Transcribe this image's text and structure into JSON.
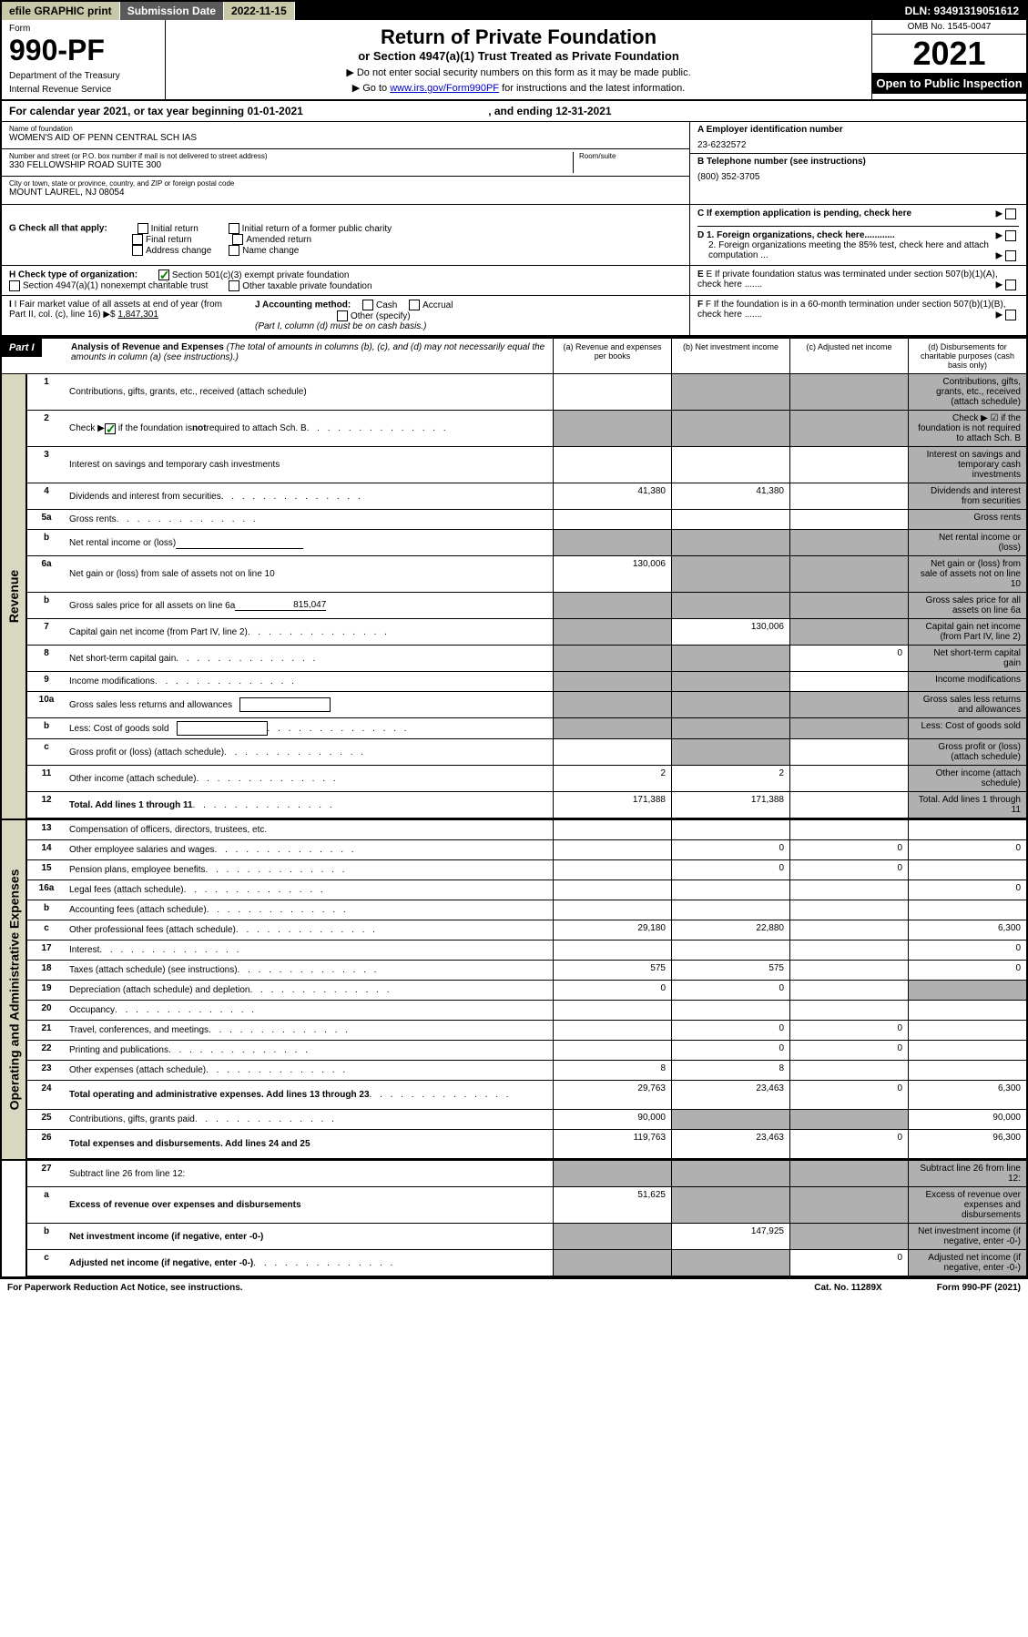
{
  "top_bar": {
    "efile": "efile GRAPHIC print",
    "sub_label": "Submission Date",
    "sub_value": "2022-11-15",
    "dln": "DLN: 93491319051612"
  },
  "header": {
    "form_label": "Form",
    "form_num": "990-PF",
    "dept": "Department of the Treasury",
    "irs": "Internal Revenue Service",
    "title": "Return of Private Foundation",
    "subtitle": "or Section 4947(a)(1) Trust Treated as Private Foundation",
    "instr1": "▶ Do not enter social security numbers on this form as it may be made public.",
    "instr2_pre": "▶ Go to ",
    "instr2_link": "www.irs.gov/Form990PF",
    "instr2_post": " for instructions and the latest information.",
    "omb": "OMB No. 1545-0047",
    "year": "2021",
    "open": "Open to Public Inspection"
  },
  "cal_year": {
    "pre": "For calendar year 2021, or tax year beginning ",
    "begin": "01-01-2021",
    "mid": " , and ending ",
    "end": "12-31-2021"
  },
  "name_block": {
    "label": "Name of foundation",
    "value": "WOMEN'S AID OF PENN CENTRAL SCH IAS"
  },
  "address_block": {
    "label": "Number and street (or P.O. box number if mail is not delivered to street address)",
    "value": "330 FELLOWSHIP ROAD SUITE 300",
    "room_label": "Room/suite"
  },
  "city_block": {
    "label": "City or town, state or province, country, and ZIP or foreign postal code",
    "value": "MOUNT LAUREL, NJ  08054"
  },
  "ein": {
    "label": "A Employer identification number",
    "value": "23-6232572"
  },
  "phone": {
    "label": "B Telephone number (see instructions)",
    "value": "(800) 352-3705"
  },
  "c_line": "C If exemption application is pending, check here",
  "g_check": {
    "label": "G Check all that apply:",
    "initial": "Initial return",
    "initial_former": "Initial return of a former public charity",
    "final": "Final return",
    "amended": "Amended return",
    "address": "Address change",
    "name": "Name change"
  },
  "d_block": {
    "d1": "D 1. Foreign organizations, check here............",
    "d2": "2. Foreign organizations meeting the 85% test, check here and attach computation ..."
  },
  "h_check": {
    "label": "H Check type of organization:",
    "opt1": "Section 501(c)(3) exempt private foundation",
    "opt2": "Section 4947(a)(1) nonexempt charitable trust",
    "opt3": "Other taxable private foundation"
  },
  "e_line": "E If private foundation status was terminated under section 507(b)(1)(A), check here .......",
  "i_block": {
    "label": "I Fair market value of all assets at end of year (from Part II, col. (c), line 16) ▶$",
    "value": "1,847,301"
  },
  "j_block": {
    "label": "J Accounting method:",
    "cash": "Cash",
    "accrual": "Accrual",
    "other": "Other (specify)",
    "note": "(Part I, column (d) must be on cash basis.)"
  },
  "f_line": "F If the foundation is in a 60-month termination under section 507(b)(1)(B), check here .......",
  "part1": {
    "label": "Part I",
    "title": "Analysis of Revenue and Expenses",
    "note": "(The total of amounts in columns (b), (c), and (d) may not necessarily equal the amounts in column (a) (see instructions).)",
    "col_a": "(a) Revenue and expenses per books",
    "col_b": "(b) Net investment income",
    "col_c": "(c) Adjusted net income",
    "col_d": "(d) Disbursements for charitable purposes (cash basis only)"
  },
  "side_labels": {
    "revenue": "Revenue",
    "expenses": "Operating and Administrative Expenses"
  },
  "rows": [
    {
      "n": "1",
      "d": "Contributions, gifts, grants, etc., received (attach schedule)",
      "a": "",
      "b_s": true,
      "c_s": true,
      "d_s": true
    },
    {
      "n": "2",
      "d": "Check ▶ ☑ if the foundation is not required to attach Sch. B",
      "checkmark": true,
      "a_s": true,
      "b_s": true,
      "c_s": true,
      "d_s": true,
      "dots": true
    },
    {
      "n": "3",
      "d": "Interest on savings and temporary cash investments",
      "d_s": true
    },
    {
      "n": "4",
      "d": "Dividends and interest from securities",
      "a": "41,380",
      "b": "41,380",
      "d_s": true,
      "dots": true
    },
    {
      "n": "5a",
      "d": "Gross rents",
      "d_s": true,
      "dots": true
    },
    {
      "n": "b",
      "d": "Net rental income or (loss)",
      "inline": true,
      "a_s": true,
      "b_s": true,
      "c_s": true,
      "d_s": true
    },
    {
      "n": "6a",
      "d": "Net gain or (loss) from sale of assets not on line 10",
      "a": "130,006",
      "b_s": true,
      "c_s": true,
      "d_s": true
    },
    {
      "n": "b",
      "d": "Gross sales price for all assets on line 6a",
      "inline_val": "815,047",
      "a_s": true,
      "b_s": true,
      "c_s": true,
      "d_s": true
    },
    {
      "n": "7",
      "d": "Capital gain net income (from Part IV, line 2)",
      "a_s": true,
      "b": "130,006",
      "c_s": true,
      "d_s": true,
      "dots": true
    },
    {
      "n": "8",
      "d": "Net short-term capital gain",
      "a_s": true,
      "b_s": true,
      "c": "0",
      "d_s": true,
      "dots": true
    },
    {
      "n": "9",
      "d": "Income modifications",
      "a_s": true,
      "b_s": true,
      "d_s": true,
      "dots": true
    },
    {
      "n": "10a",
      "d": "Gross sales less returns and allowances",
      "box": true,
      "a_s": true,
      "b_s": true,
      "c_s": true,
      "d_s": true
    },
    {
      "n": "b",
      "d": "Less: Cost of goods sold",
      "box": true,
      "a_s": true,
      "b_s": true,
      "c_s": true,
      "d_s": true,
      "dots": true
    },
    {
      "n": "c",
      "d": "Gross profit or (loss) (attach schedule)",
      "b_s": true,
      "d_s": true,
      "dots": true
    },
    {
      "n": "11",
      "d": "Other income (attach schedule)",
      "a": "2",
      "b": "2",
      "d_s": true,
      "dots": true
    },
    {
      "n": "12",
      "d": "Total. Add lines 1 through 11",
      "bold": true,
      "a": "171,388",
      "b": "171,388",
      "d_s": true,
      "dots": true
    }
  ],
  "exp_rows": [
    {
      "n": "13",
      "d": "Compensation of officers, directors, trustees, etc."
    },
    {
      "n": "14",
      "d": "Other employee salaries and wages",
      "b": "0",
      "c": "0",
      "dd": "0",
      "dots": true
    },
    {
      "n": "15",
      "d": "Pension plans, employee benefits",
      "b": "0",
      "c": "0",
      "dots": true
    },
    {
      "n": "16a",
      "d": "Legal fees (attach schedule)",
      "dd": "0",
      "dots": true
    },
    {
      "n": "b",
      "d": "Accounting fees (attach schedule)",
      "dots": true
    },
    {
      "n": "c",
      "d": "Other professional fees (attach schedule)",
      "a": "29,180",
      "b": "22,880",
      "dd": "6,300",
      "dots": true
    },
    {
      "n": "17",
      "d": "Interest",
      "dd": "0",
      "dots": true
    },
    {
      "n": "18",
      "d": "Taxes (attach schedule) (see instructions)",
      "a": "575",
      "b": "575",
      "dd": "0",
      "dots": true
    },
    {
      "n": "19",
      "d": "Depreciation (attach schedule) and depletion",
      "a": "0",
      "b": "0",
      "d_s": true,
      "dots": true
    },
    {
      "n": "20",
      "d": "Occupancy",
      "dots": true
    },
    {
      "n": "21",
      "d": "Travel, conferences, and meetings",
      "b": "0",
      "c": "0",
      "dots": true
    },
    {
      "n": "22",
      "d": "Printing and publications",
      "b": "0",
      "c": "0",
      "dots": true
    },
    {
      "n": "23",
      "d": "Other expenses (attach schedule)",
      "a": "8",
      "b": "8",
      "dots": true
    },
    {
      "n": "24",
      "d": "Total operating and administrative expenses. Add lines 13 through 23",
      "bold": true,
      "a": "29,763",
      "b": "23,463",
      "c": "0",
      "dd": "6,300",
      "dots": true,
      "tall": true
    },
    {
      "n": "25",
      "d": "Contributions, gifts, grants paid",
      "a": "90,000",
      "b_s": true,
      "c_s": true,
      "dd": "90,000",
      "dots": true
    },
    {
      "n": "26",
      "d": "Total expenses and disbursements. Add lines 24 and 25",
      "bold": true,
      "a": "119,763",
      "b": "23,463",
      "c": "0",
      "dd": "96,300",
      "tall": true
    }
  ],
  "bottom_rows": [
    {
      "n": "27",
      "d": "Subtract line 26 from line 12:",
      "a_s": true,
      "b_s": true,
      "c_s": true,
      "d_s": true
    },
    {
      "n": "a",
      "d": "Excess of revenue over expenses and disbursements",
      "bold": true,
      "a": "51,625",
      "b_s": true,
      "c_s": true,
      "d_s": true
    },
    {
      "n": "b",
      "d": "Net investment income (if negative, enter -0-)",
      "bold": true,
      "a_s": true,
      "b": "147,925",
      "c_s": true,
      "d_s": true
    },
    {
      "n": "c",
      "d": "Adjusted net income (if negative, enter -0-)",
      "bold": true,
      "a_s": true,
      "b_s": true,
      "c": "0",
      "d_s": true,
      "dots": true
    }
  ],
  "footer": {
    "left": "For Paperwork Reduction Act Notice, see instructions.",
    "center": "Cat. No. 11289X",
    "right": "Form 990-PF (2021)"
  }
}
